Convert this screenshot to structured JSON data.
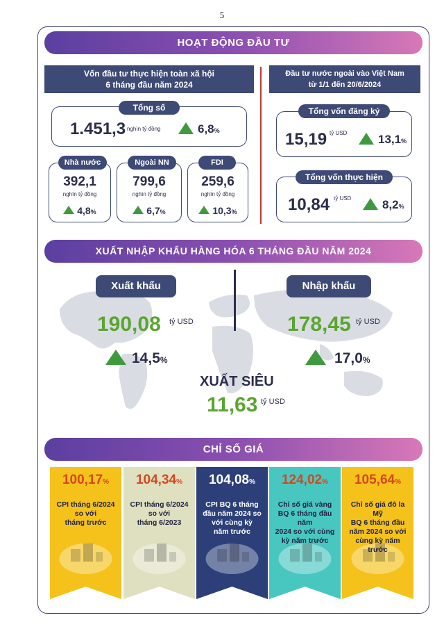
{
  "page_number": "5",
  "investment": {
    "banner": "HOẠT ĐỘNG ĐẦU TƯ",
    "social": {
      "heading_line1": "Vốn đầu tư thực hiện toàn xã hội",
      "heading_line2": "6 tháng đầu năm 2024",
      "total": {
        "label": "Tổng số",
        "value": "1.451,3",
        "unit": "nghìn tỷ đồng",
        "pct": "6,8",
        "pct_sign": "%"
      },
      "items": [
        {
          "label": "Nhà nước",
          "value": "392,1",
          "unit": "nghìn tỷ đồng",
          "pct": "4,8",
          "pct_sign": "%"
        },
        {
          "label": "Ngoài NN",
          "value": "799,6",
          "unit": "nghìn tỷ đồng",
          "pct": "6,7",
          "pct_sign": "%"
        },
        {
          "label": "FDI",
          "value": "259,6",
          "unit": "nghìn tỷ đồng",
          "pct": "10,3",
          "pct_sign": "%"
        }
      ]
    },
    "foreign": {
      "heading_line1": "Đầu tư nước ngoài vào Việt Nam",
      "heading_line2": "từ 1/1 đến 20/6/2024",
      "registered": {
        "label": "Tổng vốn đăng ký",
        "value": "15,19",
        "unit": "tỷ USD",
        "pct": "13,1",
        "pct_sign": "%"
      },
      "implemented": {
        "label": "Tổng vốn thực hiện",
        "value": "10,84",
        "unit": "tỷ USD",
        "pct": "8,2",
        "pct_sign": "%"
      }
    }
  },
  "trade": {
    "banner": "XUẤT NHẬP KHẨU HÀNG HÓA 6 THÁNG ĐẦU NĂM 2024",
    "export": {
      "label": "Xuất khẩu",
      "value": "190,08",
      "unit": "tỷ USD",
      "pct": "14,5",
      "pct_sign": "%"
    },
    "import": {
      "label": "Nhập khẩu",
      "value": "178,45",
      "unit": "tỷ USD",
      "pct": "17,0",
      "pct_sign": "%"
    },
    "surplus": {
      "label": "XUẤT SIÊU",
      "value": "11,63",
      "unit": "tỷ USD"
    }
  },
  "prices": {
    "banner": "CHỈ SỐ GIÁ",
    "cards": [
      {
        "value": "100,17",
        "pct_sign": "%",
        "line1": "CPI tháng 6/2024",
        "line2": "so với",
        "line3": "tháng trước",
        "line4": "",
        "bg": "#f4c21b",
        "text_color": "#1e2040",
        "num_color": "#d6461e"
      },
      {
        "value": "104,34",
        "pct_sign": "%",
        "line1": "CPI tháng 6/2024",
        "line2": "so với",
        "line3": "tháng 6/2023",
        "line4": "",
        "bg": "#dfe0c0",
        "text_color": "#1e2040",
        "num_color": "#d6461e"
      },
      {
        "value": "104,08",
        "pct_sign": "%",
        "line1": "CPI BQ 6 tháng",
        "line2": "đầu năm 2024 so",
        "line3": "với cùng kỳ",
        "line4": "năm trước",
        "bg": "#2c3f78",
        "text_color": "#ffffff",
        "num_color": "#ffffff"
      },
      {
        "value": "124,02",
        "pct_sign": "%",
        "line1": "Chỉ số giá vàng",
        "line2": "BQ 6 tháng đầu năm",
        "line3": "2024 so với cùng",
        "line4": "kỳ năm trước",
        "bg": "#48c7c0",
        "text_color": "#1e2040",
        "num_color": "#d6461e"
      },
      {
        "value": "105,64",
        "pct_sign": "%",
        "line1": "Chỉ số giá đô la Mỹ",
        "line2": "BQ 6 tháng đầu",
        "line3": "năm 2024 so với",
        "line4": "cùng kỳ năm trước",
        "bg": "#f4c21b",
        "text_color": "#1e2040",
        "num_color": "#d6461e"
      }
    ]
  },
  "colors": {
    "navy": "#3e4a76",
    "green": "#5aa52f",
    "triangle": "#3f9a3f",
    "accent_red": "#c0392b"
  }
}
